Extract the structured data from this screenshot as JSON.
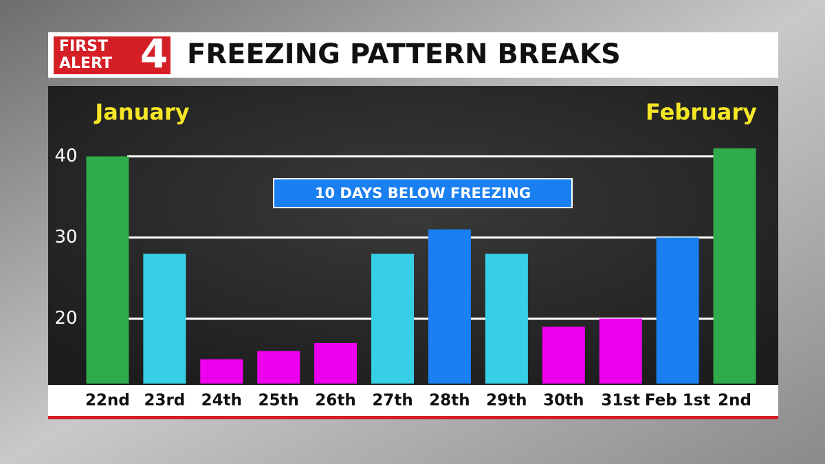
{
  "brand": {
    "line1": "FIRST",
    "line2": "ALERT",
    "number": "4"
  },
  "chart_data": {
    "type": "bar",
    "title": "FREEZING PATTERN BREAKS",
    "annotations": {
      "left_month": "January",
      "right_month": "February",
      "banner": "10 DAYS BELOW FREEZING"
    },
    "categories": [
      "22nd",
      "23rd",
      "24th",
      "25th",
      "26th",
      "27th",
      "28th",
      "29th",
      "30th",
      "31st",
      "Feb 1st",
      "2nd"
    ],
    "values": [
      40,
      28,
      15,
      16,
      17,
      28,
      31,
      28,
      19,
      20,
      30,
      41
    ],
    "colors": [
      "#2fab4b",
      "#37cfe6",
      "#ee00ee",
      "#ee00ee",
      "#ee00ee",
      "#37cfe6",
      "#1a7ff0",
      "#37cfe6",
      "#ee00ee",
      "#ee00ee",
      "#1a7ff0",
      "#2fab4b"
    ],
    "ylim": [
      12,
      48
    ],
    "yticks": [
      20,
      30,
      40
    ],
    "grid": true
  }
}
